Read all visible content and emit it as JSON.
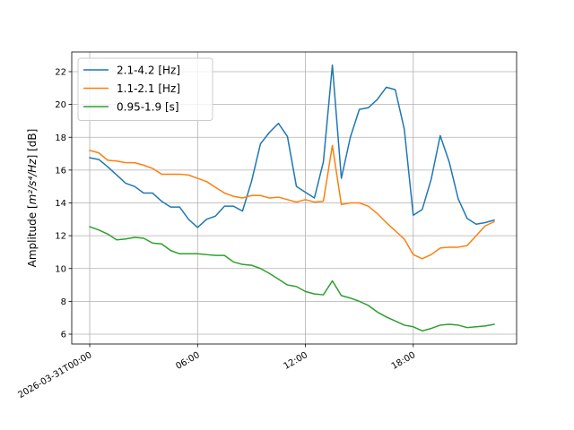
{
  "chart_data": {
    "type": "line",
    "ylabel_prefix": "Amplitude [",
    "ylabel_unit": "m²/s⁴/Hz",
    "ylabel_suffix": "] [dB]",
    "ylim": [
      5.4,
      23.2
    ],
    "xlim": [
      "2026-03-30T23:00",
      "2026-03-31T23:45"
    ],
    "grid": true,
    "legend_position": "top-left",
    "x_ticks": [
      {
        "t": "2026-03-31T00:00",
        "label": "2026-03-31T00:00"
      },
      {
        "t": "2026-03-31T06:00",
        "label": "06:00"
      },
      {
        "t": "2026-03-31T12:00",
        "label": "12:00"
      },
      {
        "t": "2026-03-31T18:00",
        "label": "18:00"
      }
    ],
    "y_ticks": [
      {
        "v": 6,
        "label": "6"
      },
      {
        "v": 8,
        "label": "8"
      },
      {
        "v": 10,
        "label": "10"
      },
      {
        "v": 12,
        "label": "12"
      },
      {
        "v": 14,
        "label": "14"
      },
      {
        "v": 16,
        "label": "16"
      },
      {
        "v": 18,
        "label": "18"
      },
      {
        "v": 20,
        "label": "20"
      },
      {
        "v": 22,
        "label": "22"
      }
    ],
    "x": [
      "2026-03-31T00:00",
      "2026-03-31T00:30",
      "2026-03-31T01:00",
      "2026-03-31T01:30",
      "2026-03-31T02:00",
      "2026-03-31T02:30",
      "2026-03-31T03:00",
      "2026-03-31T03:30",
      "2026-03-31T04:00",
      "2026-03-31T04:30",
      "2026-03-31T05:00",
      "2026-03-31T05:30",
      "2026-03-31T06:00",
      "2026-03-31T06:30",
      "2026-03-31T07:00",
      "2026-03-31T07:30",
      "2026-03-31T08:00",
      "2026-03-31T08:30",
      "2026-03-31T09:00",
      "2026-03-31T09:30",
      "2026-03-31T10:00",
      "2026-03-31T10:30",
      "2026-03-31T11:00",
      "2026-03-31T11:30",
      "2026-03-31T12:00",
      "2026-03-31T12:30",
      "2026-03-31T13:00",
      "2026-03-31T13:30",
      "2026-03-31T14:00",
      "2026-03-31T14:30",
      "2026-03-31T15:00",
      "2026-03-31T15:30",
      "2026-03-31T16:00",
      "2026-03-31T16:30",
      "2026-03-31T17:00",
      "2026-03-31T17:30",
      "2026-03-31T18:00",
      "2026-03-31T18:30",
      "2026-03-31T19:00",
      "2026-03-31T19:30",
      "2026-03-31T20:00",
      "2026-03-31T20:30",
      "2026-03-31T21:00",
      "2026-03-31T21:30",
      "2026-03-31T22:00",
      "2026-03-31T22:30"
    ],
    "series": [
      {
        "name": "2.1-4.2 [Hz]",
        "color": "#1f77b4",
        "values": [
          16.75,
          16.65,
          16.2,
          15.7,
          15.2,
          15.0,
          14.6,
          14.6,
          14.1,
          13.75,
          13.75,
          13.0,
          12.5,
          13.0,
          13.2,
          13.8,
          13.8,
          13.5,
          15.3,
          17.6,
          18.3,
          18.85,
          18.05,
          15.0,
          14.65,
          14.3,
          16.5,
          22.4,
          15.5,
          18.0,
          19.7,
          19.8,
          20.3,
          21.05,
          20.9,
          18.5,
          13.25,
          13.6,
          15.45,
          18.1,
          16.5,
          14.25,
          13.05,
          12.7,
          12.8,
          12.95
        ]
      },
      {
        "name": "1.1-2.1 [Hz]",
        "color": "#ff7f0e",
        "values": [
          17.2,
          17.05,
          16.6,
          16.55,
          16.45,
          16.45,
          16.3,
          16.1,
          15.75,
          15.75,
          15.75,
          15.7,
          15.5,
          15.3,
          14.95,
          14.6,
          14.4,
          14.3,
          14.45,
          14.45,
          14.3,
          14.35,
          14.2,
          14.05,
          14.2,
          14.05,
          14.1,
          17.5,
          13.9,
          14.0,
          14.0,
          13.8,
          13.35,
          12.8,
          12.3,
          11.8,
          10.85,
          10.6,
          10.85,
          11.25,
          11.3,
          11.3,
          11.4,
          12.0,
          12.6,
          12.85
        ]
      },
      {
        "name": "0.95-1.9 [s]",
        "color": "#2ca02c",
        "values": [
          12.55,
          12.35,
          12.1,
          11.75,
          11.8,
          11.9,
          11.85,
          11.55,
          11.5,
          11.1,
          10.9,
          10.9,
          10.9,
          10.85,
          10.8,
          10.8,
          10.4,
          10.25,
          10.2,
          10.0,
          9.7,
          9.35,
          9.0,
          8.9,
          8.6,
          8.45,
          8.4,
          9.25,
          8.35,
          8.2,
          8.0,
          7.75,
          7.35,
          7.05,
          6.8,
          6.55,
          6.45,
          6.2,
          6.35,
          6.55,
          6.6,
          6.55,
          6.4,
          6.45,
          6.5,
          6.6
        ]
      }
    ]
  }
}
